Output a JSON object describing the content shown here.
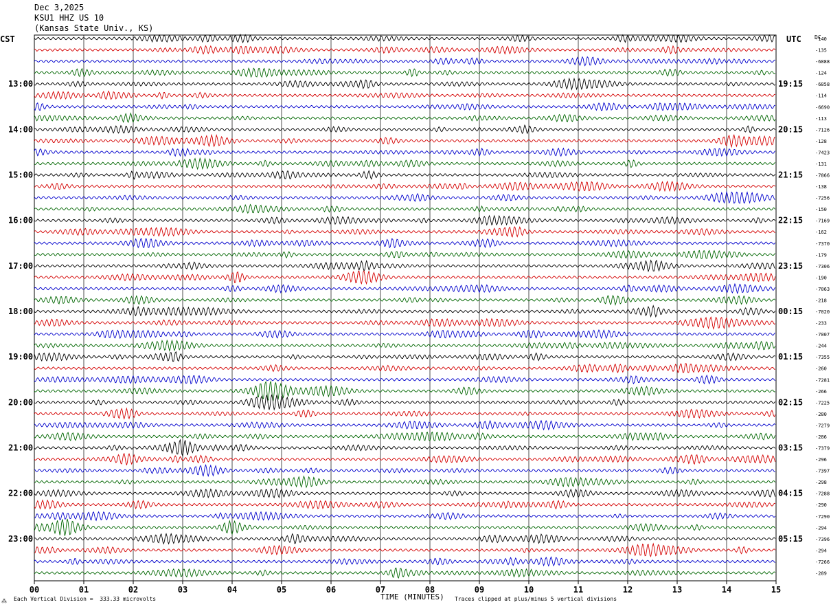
{
  "header": {
    "date": "Dec 3,2025",
    "station": "KSU1 HHZ US 10",
    "location": "(Kansas State Univ., KS)"
  },
  "left_tz_label": "CST",
  "right_tz_label": "UTC",
  "dc_label": "DC",
  "footer": {
    "vertical_division": "Each Vertical Division =  333.33 microvolts",
    "axis_title": "TIME (MINUTES)",
    "clip_note": "Traces clipped at plus/minus 5 vertical divisions",
    "corner_mark": "⁂"
  },
  "colors": {
    "trace_cycle": [
      "#000000",
      "#d40000",
      "#0000cc",
      "#006600"
    ],
    "grid": "#000000",
    "background": "#ffffff"
  },
  "chart_data": {
    "type": "line",
    "title": "KSU1 HHZ US 10",
    "xlabel": "TIME (MINUTES)",
    "ylabel": "",
    "xlim": [
      0,
      15
    ],
    "x_ticks": [
      "00",
      "01",
      "02",
      "03",
      "04",
      "05",
      "06",
      "07",
      "08",
      "09",
      "10",
      "11",
      "12",
      "13",
      "14",
      "15"
    ],
    "rows_per_hour": 4,
    "row_interval_minutes": 15,
    "grid": true,
    "left_hour_labels": [
      "13:00",
      "14:00",
      "15:00",
      "16:00",
      "17:00",
      "18:00",
      "19:00",
      "20:00",
      "21:00",
      "22:00",
      "23:00"
    ],
    "right_hour_labels": [
      "19:15",
      "20:15",
      "21:15",
      "22:15",
      "23:15",
      "00:15",
      "01:15",
      "02:15",
      "03:15",
      "04:15",
      "05:15"
    ],
    "dc_offsets": [
      "-140",
      "-135",
      "-6888",
      "-124",
      "-6858",
      "-114",
      "-6690",
      "-113",
      "-7126",
      "-128",
      "-7423",
      "-131",
      "-7866",
      "-138",
      "-7256",
      "-150",
      "-7169",
      "-162",
      "-7370",
      "-179",
      "-7306",
      "-190",
      "-7063",
      "-218",
      "-7020",
      "-233",
      "-7007",
      "-244",
      "-7355",
      "-260",
      "-7281",
      "-266",
      "-7225",
      "-280",
      "-7279",
      "-286",
      "-7379",
      "-296",
      "-7397",
      "-298",
      "-7288",
      "-290",
      "-7290",
      "-294",
      "-7396",
      "-294",
      "-7266",
      "-289"
    ],
    "vertical_division_microvolts": 333.33,
    "clip_divisions": 5
  }
}
